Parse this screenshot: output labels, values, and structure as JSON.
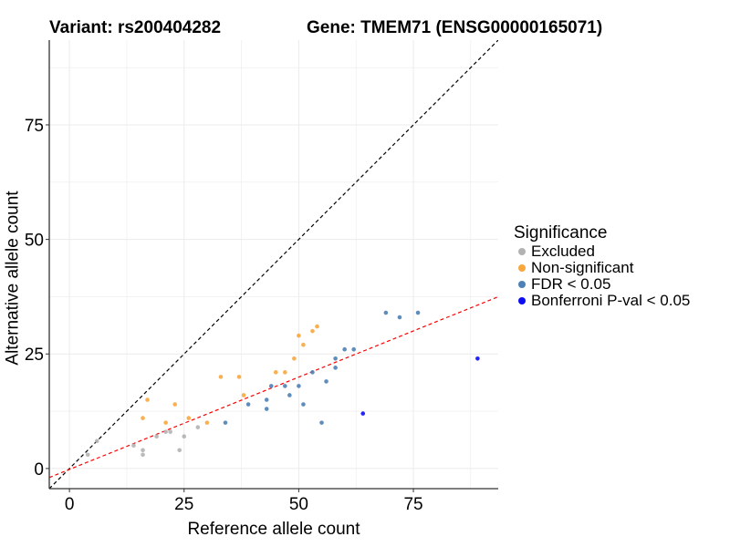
{
  "chart_data": {
    "type": "scatter",
    "title_left": "Variant: rs200404282",
    "title_right": "Gene: TMEM71 (ENSG00000165071)",
    "xlabel": "Reference allele count",
    "ylabel": "Alternative allele count",
    "xlim": [
      -4.4,
      93.5
    ],
    "ylim": [
      -4.4,
      93.5
    ],
    "xticks": [
      0,
      25,
      50,
      75
    ],
    "yticks": [
      0,
      25,
      50,
      75
    ],
    "grid": true,
    "legend_title": "Significance",
    "categories": [
      {
        "name": "Excluded",
        "color": "#B3B3B3"
      },
      {
        "name": "Non-significant",
        "color": "#F8A73E"
      },
      {
        "name": "FDR < 0.05",
        "color": "#4D81B5"
      },
      {
        "name": "Bonferroni P-val < 0.05",
        "color": "#0D0DF2"
      }
    ],
    "reference_lines": [
      {
        "name": "identity",
        "slope": 1,
        "intercept": 0,
        "color": "#000000",
        "dash": "dashed"
      },
      {
        "name": "fit",
        "slope": 0.403,
        "intercept": -0.2,
        "color": "#FF0000",
        "dash": "dashed"
      }
    ],
    "points": [
      {
        "x": 4,
        "y": 3,
        "group": "Excluded"
      },
      {
        "x": 6,
        "y": 6,
        "group": "Excluded"
      },
      {
        "x": 14,
        "y": 5,
        "group": "Excluded"
      },
      {
        "x": 16,
        "y": 4,
        "group": "Excluded"
      },
      {
        "x": 16,
        "y": 3,
        "group": "Excluded"
      },
      {
        "x": 19,
        "y": 7,
        "group": "Excluded"
      },
      {
        "x": 21,
        "y": 8,
        "group": "Excluded"
      },
      {
        "x": 22,
        "y": 8,
        "group": "Excluded"
      },
      {
        "x": 24,
        "y": 4,
        "group": "Excluded"
      },
      {
        "x": 25,
        "y": 7,
        "group": "Excluded"
      },
      {
        "x": 28,
        "y": 9,
        "group": "Excluded"
      },
      {
        "x": 16,
        "y": 11,
        "group": "Non-significant"
      },
      {
        "x": 17,
        "y": 15,
        "group": "Non-significant"
      },
      {
        "x": 21,
        "y": 10,
        "group": "Non-significant"
      },
      {
        "x": 23,
        "y": 14,
        "group": "Non-significant"
      },
      {
        "x": 26,
        "y": 11,
        "group": "Non-significant"
      },
      {
        "x": 30,
        "y": 10,
        "group": "Non-significant"
      },
      {
        "x": 33,
        "y": 20,
        "group": "Non-significant"
      },
      {
        "x": 37,
        "y": 20,
        "group": "Non-significant"
      },
      {
        "x": 38,
        "y": 16,
        "group": "Non-significant"
      },
      {
        "x": 45,
        "y": 21,
        "group": "Non-significant"
      },
      {
        "x": 47,
        "y": 21,
        "group": "Non-significant"
      },
      {
        "x": 49,
        "y": 24,
        "group": "Non-significant"
      },
      {
        "x": 50,
        "y": 29,
        "group": "Non-significant"
      },
      {
        "x": 51,
        "y": 27,
        "group": "Non-significant"
      },
      {
        "x": 53,
        "y": 30,
        "group": "Non-significant"
      },
      {
        "x": 54,
        "y": 31,
        "group": "Non-significant"
      },
      {
        "x": 34,
        "y": 10,
        "group": "FDR < 0.05"
      },
      {
        "x": 39,
        "y": 14,
        "group": "FDR < 0.05"
      },
      {
        "x": 43,
        "y": 13,
        "group": "FDR < 0.05"
      },
      {
        "x": 43,
        "y": 15,
        "group": "FDR < 0.05"
      },
      {
        "x": 44,
        "y": 18,
        "group": "FDR < 0.05"
      },
      {
        "x": 47,
        "y": 18,
        "group": "FDR < 0.05"
      },
      {
        "x": 48,
        "y": 16,
        "group": "FDR < 0.05"
      },
      {
        "x": 50,
        "y": 18,
        "group": "FDR < 0.05"
      },
      {
        "x": 51,
        "y": 14,
        "group": "FDR < 0.05"
      },
      {
        "x": 53,
        "y": 21,
        "group": "FDR < 0.05"
      },
      {
        "x": 55,
        "y": 10,
        "group": "FDR < 0.05"
      },
      {
        "x": 56,
        "y": 19,
        "group": "FDR < 0.05"
      },
      {
        "x": 58,
        "y": 22,
        "group": "FDR < 0.05"
      },
      {
        "x": 58,
        "y": 24,
        "group": "FDR < 0.05"
      },
      {
        "x": 60,
        "y": 26,
        "group": "FDR < 0.05"
      },
      {
        "x": 62,
        "y": 26,
        "group": "FDR < 0.05"
      },
      {
        "x": 69,
        "y": 34,
        "group": "FDR < 0.05"
      },
      {
        "x": 72,
        "y": 33,
        "group": "FDR < 0.05"
      },
      {
        "x": 76,
        "y": 34,
        "group": "FDR < 0.05"
      },
      {
        "x": 64,
        "y": 12,
        "group": "Bonferroni P-val < 0.05"
      },
      {
        "x": 89,
        "y": 24,
        "group": "Bonferroni P-val < 0.05"
      }
    ]
  }
}
